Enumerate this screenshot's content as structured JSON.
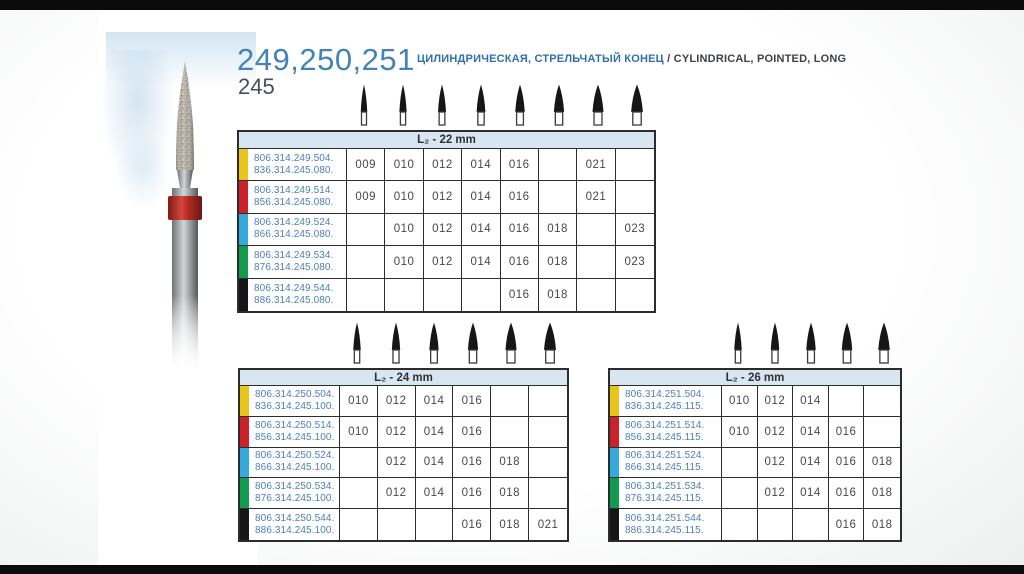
{
  "page": {
    "title_numbers": "249,250,251",
    "title_number2": "245",
    "subtitle_ru": "ЦИЛИНДРИЧЕСКАЯ, СТРЕЛЬЧАТЫЙ КОНЕЦ",
    "subtitle_en": " / CYLINDRICAL, POINTED, LONG"
  },
  "colors": {
    "accent_blue": "#4383b6",
    "code_text": "#4c7fbb",
    "table_header_bg": "#d8e6f2",
    "row_yellow": "#e7c51a",
    "row_red": "#cb2128",
    "row_blue": "#35a8dc",
    "row_green": "#129a4e",
    "row_black": "#161616"
  },
  "tables": [
    {
      "header": "L₂ - 22 mm",
      "rows": [
        {
          "color": "yellow",
          "code_top": "806.314.249.504.",
          "code_bottom": "836.314.245.080.",
          "cells": [
            "009",
            "010",
            "012",
            "014",
            "016",
            "",
            "021",
            ""
          ]
        },
        {
          "color": "red",
          "code_top": "806.314.249.514.",
          "code_bottom": "856.314.245.080.",
          "cells": [
            "009",
            "010",
            "012",
            "014",
            "016",
            "",
            "021",
            ""
          ]
        },
        {
          "color": "blue",
          "code_top": "806.314.249.524.",
          "code_bottom": "866.314.245.080.",
          "cells": [
            "",
            "010",
            "012",
            "014",
            "016",
            "018",
            "",
            "023"
          ]
        },
        {
          "color": "green",
          "code_top": "806.314.249.534.",
          "code_bottom": "876.314.245.080.",
          "cells": [
            "",
            "010",
            "012",
            "014",
            "016",
            "018",
            "",
            "023"
          ]
        },
        {
          "color": "black",
          "code_top": "806.314.249.544.",
          "code_bottom": "886.314.245.080.",
          "cells": [
            "",
            "",
            "",
            "",
            "016",
            "018",
            "",
            ""
          ]
        }
      ]
    },
    {
      "header": "L₂ - 24 mm",
      "rows": [
        {
          "color": "yellow",
          "code_top": "806.314.250.504.",
          "code_bottom": "836.314.245.100.",
          "cells": [
            "010",
            "012",
            "014",
            "016",
            "",
            ""
          ]
        },
        {
          "color": "red",
          "code_top": "806.314.250.514.",
          "code_bottom": "856.314.245.100.",
          "cells": [
            "010",
            "012",
            "014",
            "016",
            "",
            ""
          ]
        },
        {
          "color": "blue",
          "code_top": "806.314.250.524.",
          "code_bottom": "866.314.245.100.",
          "cells": [
            "",
            "012",
            "014",
            "016",
            "018",
            ""
          ]
        },
        {
          "color": "green",
          "code_top": "806.314.250.534.",
          "code_bottom": "876.314.245.100.",
          "cells": [
            "",
            "012",
            "014",
            "016",
            "018",
            ""
          ]
        },
        {
          "color": "black",
          "code_top": "806.314.250.544.",
          "code_bottom": "886.314.245.100.",
          "cells": [
            "",
            "",
            "",
            "016",
            "018",
            "021"
          ]
        }
      ]
    },
    {
      "header": "L₂ - 26 mm",
      "rows": [
        {
          "color": "yellow",
          "code_top": "806.314.251.504.",
          "code_bottom": "836.314.245.115.",
          "cells": [
            "010",
            "012",
            "014",
            "",
            ""
          ]
        },
        {
          "color": "red",
          "code_top": "806.314.251.514.",
          "code_bottom": "856.314.245.115.",
          "cells": [
            "010",
            "012",
            "014",
            "016",
            ""
          ]
        },
        {
          "color": "blue",
          "code_top": "806.314.251.524.",
          "code_bottom": "866.314.245.115.",
          "cells": [
            "",
            "012",
            "014",
            "016",
            "018"
          ]
        },
        {
          "color": "green",
          "code_top": "806.314.251.534.",
          "code_bottom": "876.314.245.115.",
          "cells": [
            "",
            "012",
            "014",
            "016",
            "018"
          ]
        },
        {
          "color": "black",
          "code_top": "806.314.251.544.",
          "code_bottom": "886.314.245.115.",
          "cells": [
            "",
            "",
            "",
            "016",
            "018"
          ]
        }
      ]
    }
  ]
}
